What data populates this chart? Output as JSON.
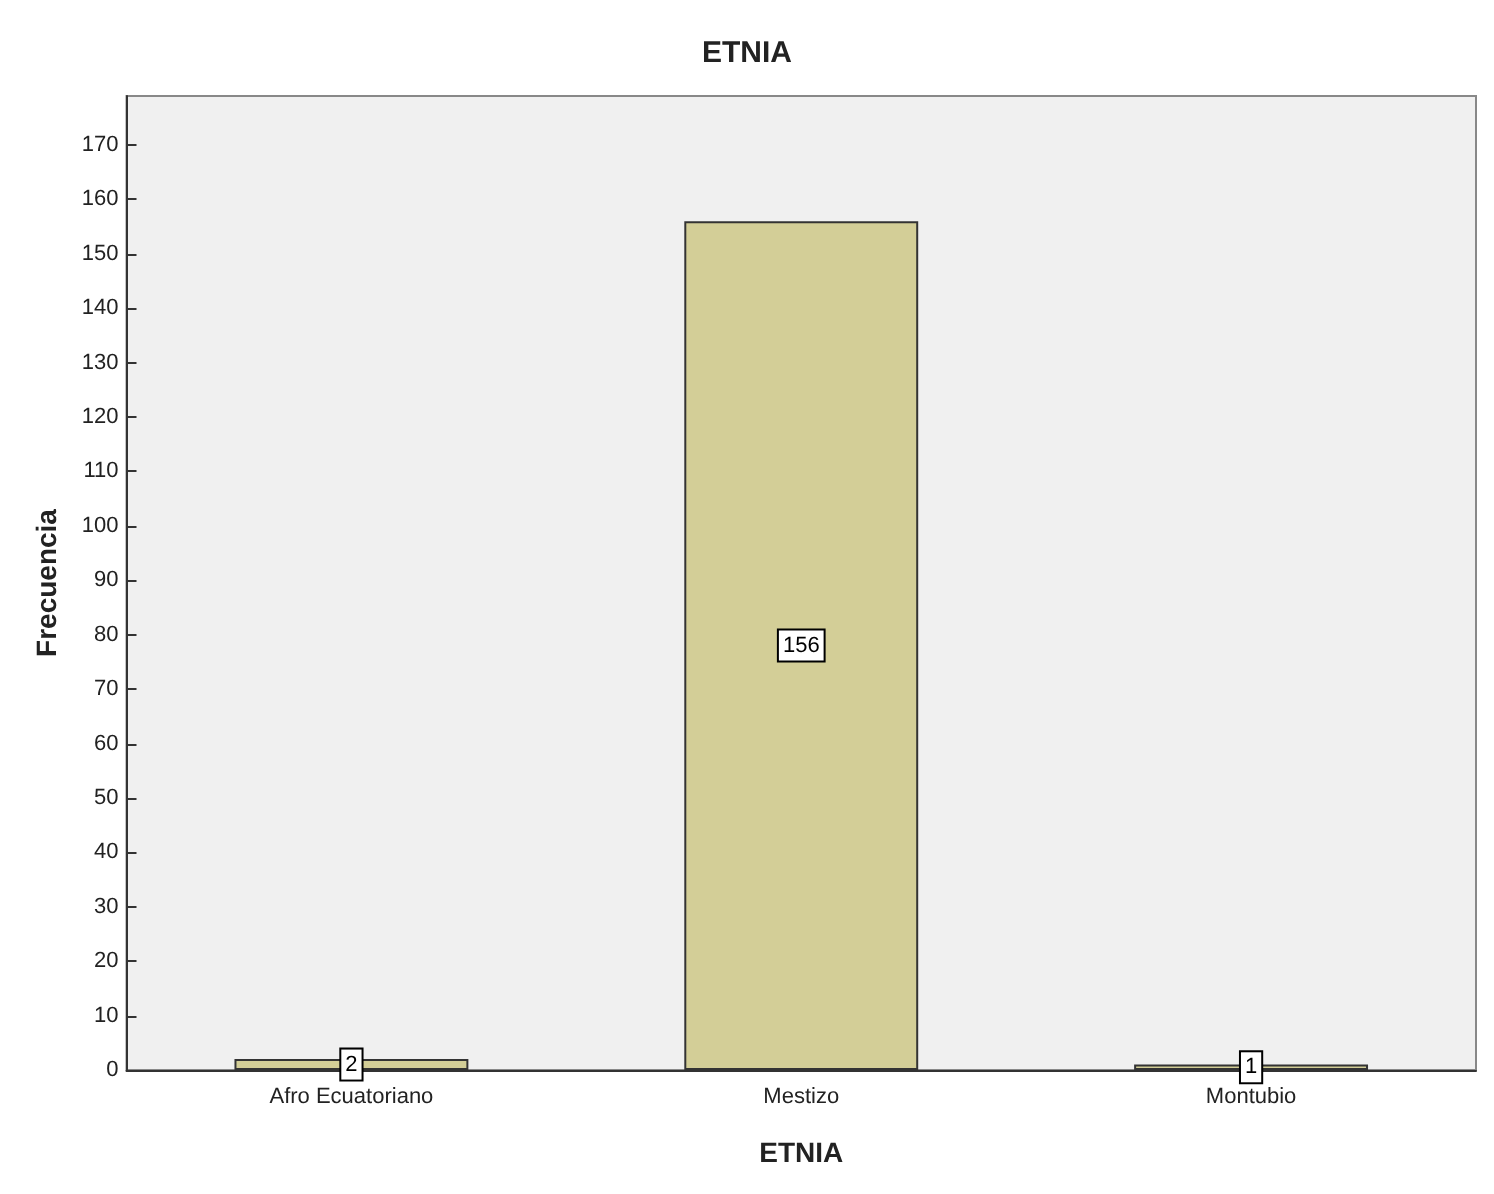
{
  "chart_data": {
    "type": "bar",
    "title": "ETNIA",
    "xlabel": "ETNIA",
    "ylabel": "Frecuencia",
    "categories": [
      "Afro Ecuatoriano",
      "Mestizo",
      "Montubio"
    ],
    "values": [
      2,
      156,
      1
    ],
    "color": "#d3ce97",
    "ylim": [
      0,
      179
    ],
    "yticks": [
      0,
      10,
      20,
      30,
      40,
      50,
      60,
      70,
      80,
      90,
      100,
      110,
      120,
      130,
      140,
      150,
      160,
      170
    ],
    "grid": false,
    "data_labels": true
  }
}
